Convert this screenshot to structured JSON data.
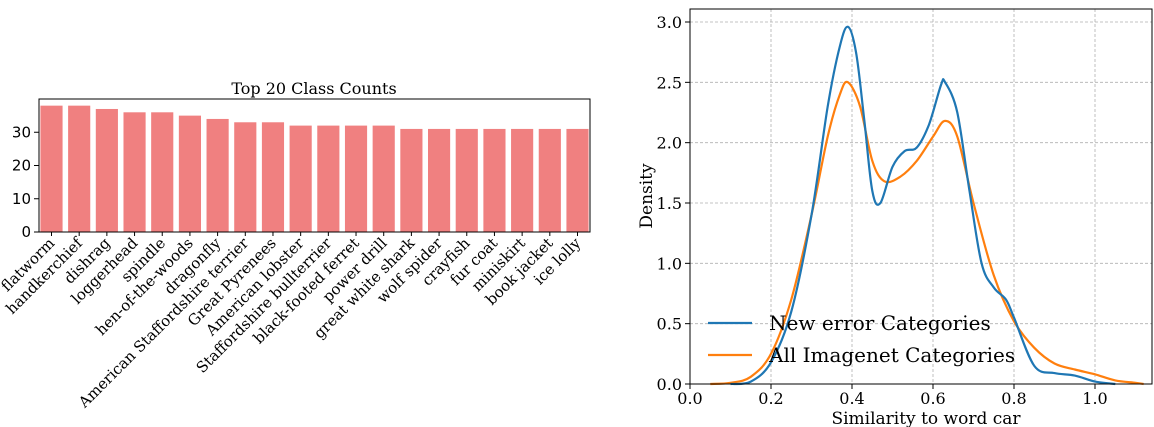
{
  "chart_data": [
    {
      "type": "bar",
      "title": "Top 20 Class Counts",
      "xlabel": "",
      "ylabel": "",
      "categories": [
        "flatworm",
        "handkerchief",
        "dishrag",
        "loggerhead",
        "spindle",
        "hen-of-the-woods",
        "dragonfly",
        "American Staffordshire terrier",
        "Great Pyrenees",
        "American lobster",
        "Staffordshire bullterrier",
        "black-footed ferret",
        "power drill",
        "great white shark",
        "wolf spider",
        "crayfish",
        "fur coat",
        "miniskirt",
        "book jacket",
        "ice lolly"
      ],
      "values": [
        38,
        38,
        37,
        36,
        36,
        35,
        34,
        33,
        33,
        32,
        32,
        32,
        32,
        31,
        31,
        31,
        31,
        31,
        31,
        31
      ],
      "ylim": [
        0,
        40
      ],
      "yticks": [
        0,
        10,
        20,
        30
      ],
      "grid": false,
      "bar_color": "#f08080"
    },
    {
      "type": "line",
      "title": "",
      "xlabel": "Similarity to word car",
      "ylabel": "Density",
      "xlim": [
        0.0,
        1.15
      ],
      "ylim": [
        0.0,
        3.1
      ],
      "xticks": [
        "0.0",
        "0.2",
        "0.4",
        "0.6",
        "0.8",
        "1.0"
      ],
      "yticks": [
        "0.0",
        "0.5",
        "1.0",
        "1.5",
        "2.0",
        "2.5",
        "3.0"
      ],
      "grid": true,
      "legend_position": "lower-left",
      "series": [
        {
          "name": "New error Categories",
          "color": "#1f77b4",
          "x": [
            0.1,
            0.15,
            0.2,
            0.25,
            0.3,
            0.34,
            0.37,
            0.39,
            0.41,
            0.43,
            0.45,
            0.47,
            0.5,
            0.53,
            0.56,
            0.59,
            0.62,
            0.63,
            0.66,
            0.69,
            0.72,
            0.75,
            0.78,
            0.8,
            0.85,
            0.9,
            0.95,
            1.0,
            1.05
          ],
          "y": [
            0.0,
            0.02,
            0.18,
            0.6,
            1.4,
            2.3,
            2.8,
            2.96,
            2.75,
            2.2,
            1.6,
            1.5,
            1.8,
            1.93,
            1.96,
            2.15,
            2.48,
            2.5,
            2.25,
            1.6,
            1.0,
            0.8,
            0.7,
            0.55,
            0.15,
            0.09,
            0.07,
            0.02,
            0.0
          ]
        },
        {
          "name": "All Imagenet Categories",
          "color": "#ff7f0e",
          "x": [
            0.05,
            0.1,
            0.15,
            0.2,
            0.25,
            0.3,
            0.34,
            0.37,
            0.39,
            0.42,
            0.45,
            0.48,
            0.52,
            0.56,
            0.6,
            0.63,
            0.66,
            0.7,
            0.75,
            0.8,
            0.85,
            0.9,
            0.95,
            1.0,
            1.05,
            1.1,
            1.12
          ],
          "y": [
            0.0,
            0.01,
            0.06,
            0.25,
            0.7,
            1.4,
            2.05,
            2.4,
            2.5,
            2.3,
            1.85,
            1.68,
            1.72,
            1.85,
            2.05,
            2.18,
            2.05,
            1.5,
            0.9,
            0.52,
            0.3,
            0.17,
            0.12,
            0.08,
            0.03,
            0.01,
            0.0
          ]
        }
      ]
    }
  ]
}
